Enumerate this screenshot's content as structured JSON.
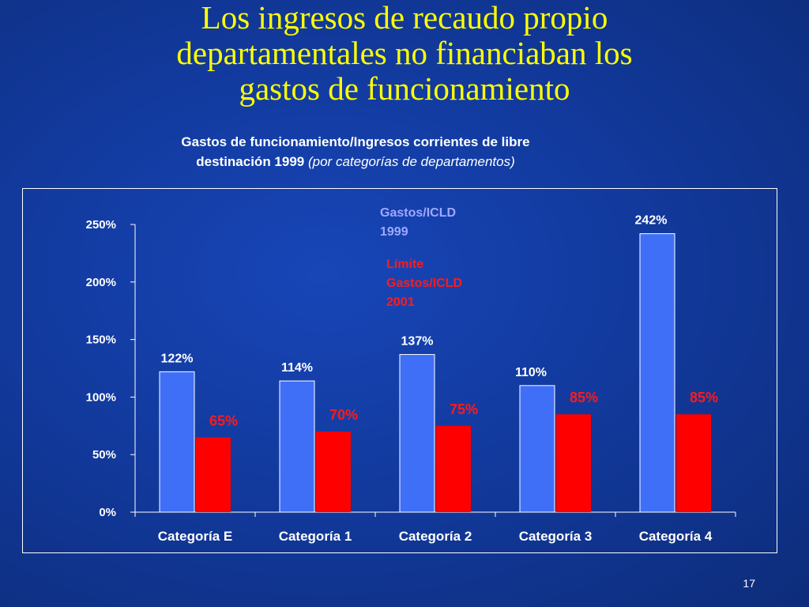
{
  "slide": {
    "title_lines": [
      "Los ingresos de recaudo propio",
      "departamentales no financiaban  los",
      "gastos de funcionamiento"
    ],
    "subtitle_line1": "Gastos de funcionamiento/Ingresos corrientes de libre",
    "subtitle_line2_bold": "destinación 1999",
    "subtitle_line2_italic": "(por categorías de departamentos)",
    "page_number": "17"
  },
  "chart_data": {
    "type": "bar",
    "categories": [
      "Categoría E",
      "Categoría 1",
      "Categoría 2",
      "Categoría 3",
      "Categoría 4"
    ],
    "series": [
      {
        "name_lines": [
          "Gastos/ICLD",
          "1999"
        ],
        "values": [
          122,
          114,
          137,
          110,
          242
        ],
        "data_labels": [
          "122%",
          "114%",
          "137%",
          "110%",
          "242%"
        ],
        "color": "#3f6ff7",
        "label_color": "#ffffff",
        "name_color": "#9fa8ff"
      },
      {
        "name_lines": [
          "Límite",
          "Gastos/ICLD",
          "2001"
        ],
        "values": [
          65,
          70,
          75,
          85,
          85
        ],
        "data_labels": [
          "65%",
          "70%",
          "75%",
          "85%",
          "85%"
        ],
        "color": "#ff0000",
        "label_color": "#ff1a1a",
        "name_color": "#ff1a1a"
      }
    ],
    "ylim": [
      0,
      250
    ],
    "yticks": [
      0,
      50,
      100,
      150,
      200,
      250
    ],
    "ytick_labels": [
      "0%",
      "50%",
      "100%",
      "150%",
      "200%",
      "250%"
    ],
    "grid": false,
    "legend_placement": "top-center"
  }
}
